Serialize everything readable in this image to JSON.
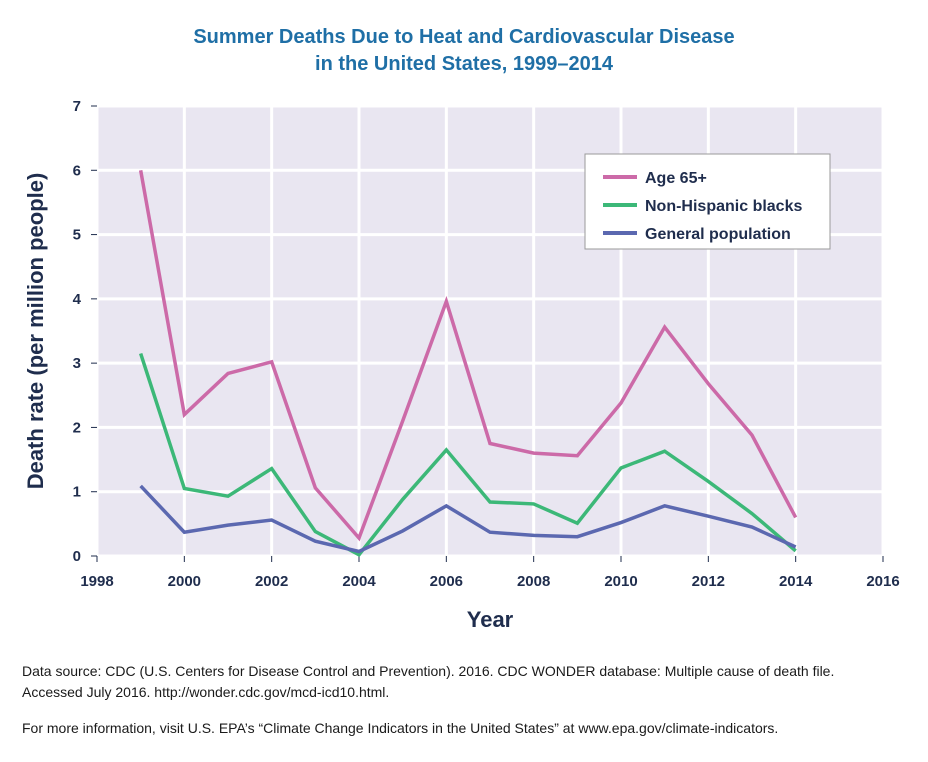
{
  "chart_data": {
    "type": "line",
    "title": "Summer Deaths Due to Heat and Cardiovascular Disease",
    "subtitle": "in the United States, 1999–2014",
    "xlabel": "Year",
    "ylabel": "Death rate (per million people)",
    "xlim": [
      1998,
      2016
    ],
    "ylim": [
      0,
      7
    ],
    "xticks": [
      "1998",
      "2000",
      "2002",
      "2004",
      "2006",
      "2008",
      "2010",
      "2012",
      "2014",
      "2016"
    ],
    "yticks": [
      "0",
      "1",
      "2",
      "3",
      "4",
      "5",
      "6",
      "7"
    ],
    "grid": true,
    "legend_position": "top-right",
    "x": [
      1999,
      2000,
      2001,
      2002,
      2003,
      2004,
      2005,
      2006,
      2007,
      2008,
      2009,
      2010,
      2011,
      2012,
      2013,
      2014
    ],
    "series": [
      {
        "name": "Age 65+",
        "color": "#cc6aa8",
        "values": [
          6.0,
          2.2,
          2.84,
          3.02,
          1.06,
          0.28,
          2.1,
          3.96,
          1.75,
          1.6,
          1.56,
          2.38,
          3.56,
          2.68,
          1.88,
          0.6
        ]
      },
      {
        "name": "Non-Hispanic blacks",
        "color": "#3cb878",
        "values": [
          3.15,
          1.05,
          0.93,
          1.36,
          0.38,
          0.02,
          0.88,
          1.65,
          0.84,
          0.81,
          0.51,
          1.37,
          1.63,
          1.16,
          0.66,
          0.08
        ]
      },
      {
        "name": "General population",
        "color": "#5b68b0",
        "values": [
          1.09,
          0.37,
          0.48,
          0.56,
          0.23,
          0.07,
          0.39,
          0.78,
          0.37,
          0.32,
          0.3,
          0.52,
          0.78,
          0.62,
          0.45,
          0.14
        ]
      }
    ]
  },
  "footer": {
    "source_line1": "Data source: CDC (U.S. Centers for Disease Control and Prevention). 2016. CDC WONDER database: Multiple cause of death file.",
    "source_line2": "Accessed July 2016. http://wonder.cdc.gov/mcd-icd10.html.",
    "more_info": "For more information, visit U.S. EPA’s “Climate Change Indicators in the United States” at www.epa.gov/climate-indicators."
  }
}
